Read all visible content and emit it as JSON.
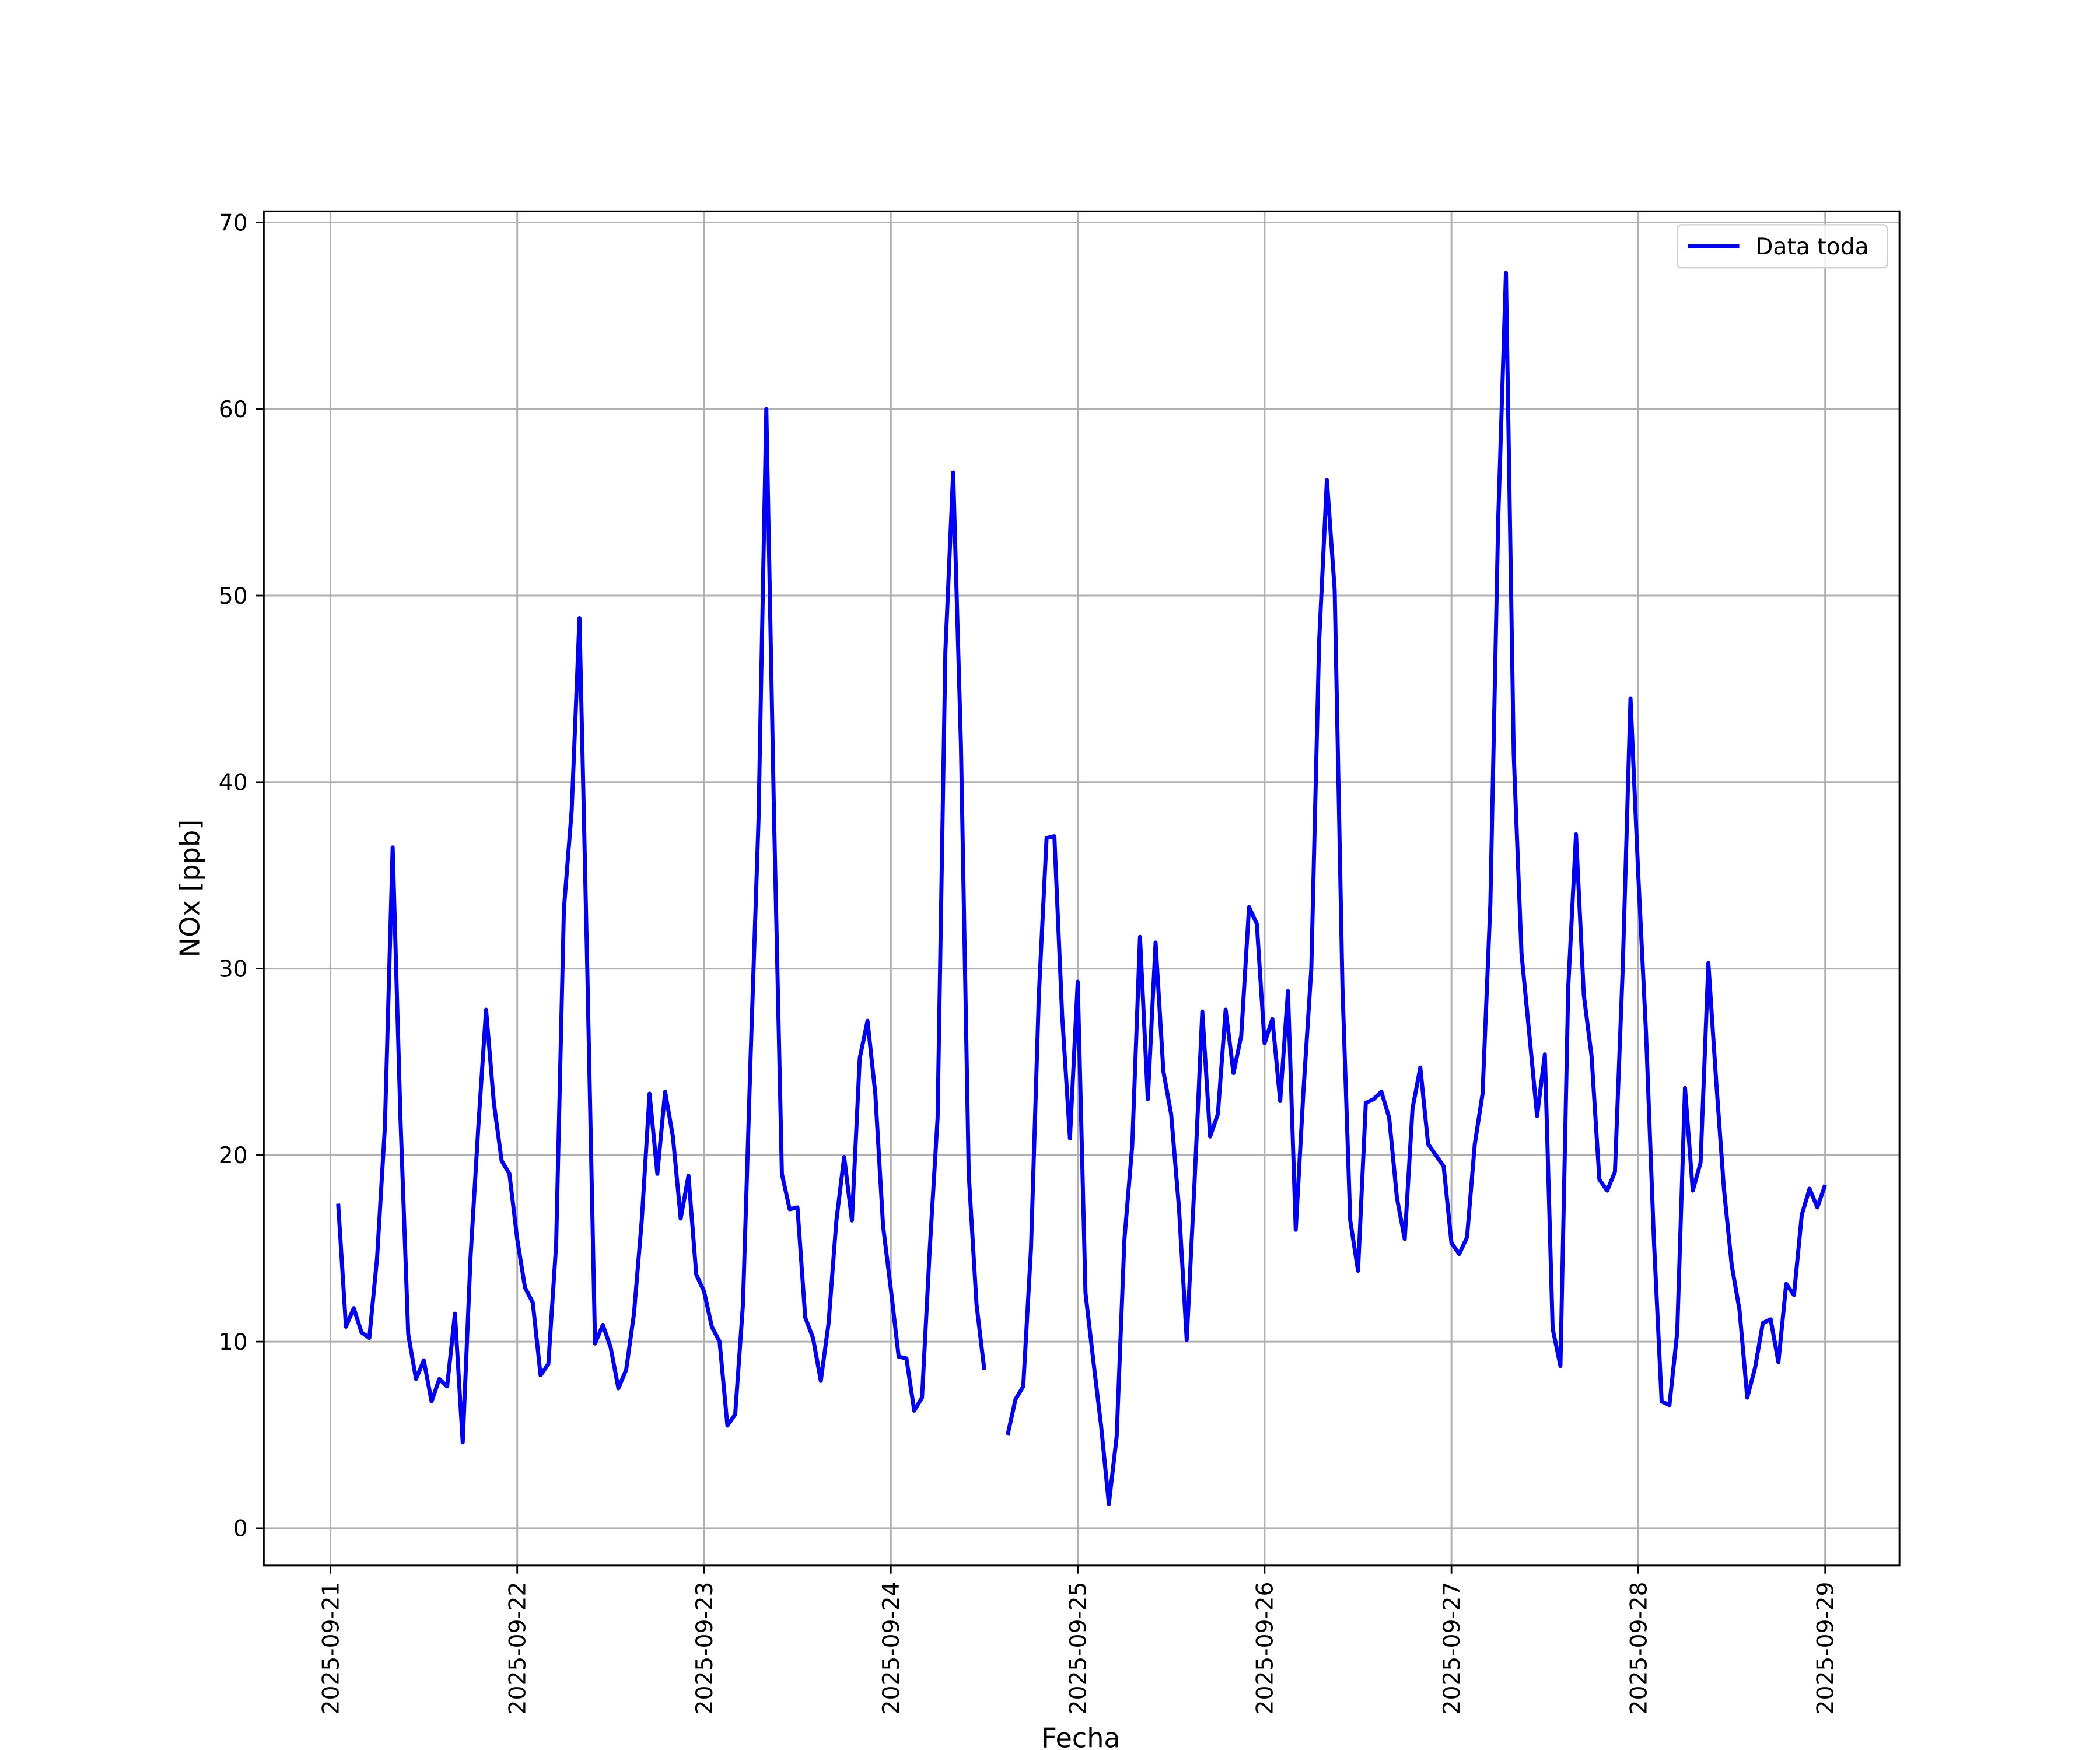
{
  "chart_data": {
    "type": "line",
    "xlabel": "Fecha",
    "ylabel": "NOx [ppb]",
    "xlim": [
      "2025-09-20 15:27",
      "2025-09-29 09:33"
    ],
    "xticks": [
      "2025-09-21",
      "2025-09-22",
      "2025-09-23",
      "2025-09-24",
      "2025-09-25",
      "2025-09-26",
      "2025-09-27",
      "2025-09-28",
      "2025-09-29"
    ],
    "ylim": [
      -2,
      70.6
    ],
    "yticks": [
      0,
      10,
      20,
      30,
      40,
      50,
      60,
      70
    ],
    "grid": true,
    "legend": "upper right",
    "x": [
      "2025-09-21 01:00",
      "2025-09-21 02:00",
      "2025-09-21 03:00",
      "2025-09-21 04:00",
      "2025-09-21 05:00",
      "2025-09-21 06:00",
      "2025-09-21 07:00",
      "2025-09-21 08:00",
      "2025-09-21 09:00",
      "2025-09-21 10:00",
      "2025-09-21 11:00",
      "2025-09-21 12:00",
      "2025-09-21 13:00",
      "2025-09-21 14:00",
      "2025-09-21 15:00",
      "2025-09-21 16:00",
      "2025-09-21 17:00",
      "2025-09-21 18:00",
      "2025-09-21 19:00",
      "2025-09-21 20:00",
      "2025-09-21 21:00",
      "2025-09-21 22:00",
      "2025-09-21 23:00",
      "2025-09-22 00:00",
      "2025-09-22 01:00",
      "2025-09-22 02:00",
      "2025-09-22 03:00",
      "2025-09-22 04:00",
      "2025-09-22 05:00",
      "2025-09-22 06:00",
      "2025-09-22 07:00",
      "2025-09-22 08:00",
      "2025-09-22 09:00",
      "2025-09-22 10:00",
      "2025-09-22 11:00",
      "2025-09-22 12:00",
      "2025-09-22 13:00",
      "2025-09-22 14:00",
      "2025-09-22 15:00",
      "2025-09-22 16:00",
      "2025-09-22 17:00",
      "2025-09-22 18:00",
      "2025-09-22 19:00",
      "2025-09-22 20:00",
      "2025-09-22 21:00",
      "2025-09-22 22:00",
      "2025-09-22 23:00",
      "2025-09-23 00:00",
      "2025-09-23 01:00",
      "2025-09-23 02:00",
      "2025-09-23 03:00",
      "2025-09-23 04:00",
      "2025-09-23 05:00",
      "2025-09-23 06:00",
      "2025-09-23 07:00",
      "2025-09-23 08:00",
      "2025-09-23 09:00",
      "2025-09-23 10:00",
      "2025-09-23 11:00",
      "2025-09-23 12:00",
      "2025-09-23 13:00",
      "2025-09-23 14:00",
      "2025-09-23 15:00",
      "2025-09-23 16:00",
      "2025-09-23 17:00",
      "2025-09-23 18:00",
      "2025-09-23 19:00",
      "2025-09-23 20:00",
      "2025-09-23 21:00",
      "2025-09-23 22:00",
      "2025-09-23 23:00",
      "2025-09-24 00:00",
      "2025-09-24 01:00",
      "2025-09-24 02:00",
      "2025-09-24 03:00",
      "2025-09-24 04:00",
      "2025-09-24 05:00",
      "2025-09-24 06:00",
      "2025-09-24 07:00",
      "2025-09-24 08:00",
      "2025-09-24 09:00",
      "2025-09-24 10:00",
      "2025-09-24 11:00",
      "2025-09-24 12:00",
      "2025-09-24 13:00",
      "2025-09-24 14:00",
      "2025-09-24 15:00",
      "2025-09-24 16:00",
      "2025-09-24 17:00",
      "2025-09-24 18:00",
      "2025-09-24 19:00",
      "2025-09-24 20:00",
      "2025-09-24 21:00",
      "2025-09-24 22:00",
      "2025-09-24 23:00",
      "2025-09-25 00:00",
      "2025-09-25 01:00",
      "2025-09-25 02:00",
      "2025-09-25 03:00",
      "2025-09-25 04:00",
      "2025-09-25 05:00",
      "2025-09-25 06:00",
      "2025-09-25 07:00",
      "2025-09-25 08:00",
      "2025-09-25 09:00",
      "2025-09-25 10:00",
      "2025-09-25 11:00",
      "2025-09-25 12:00",
      "2025-09-25 13:00",
      "2025-09-25 14:00",
      "2025-09-25 15:00",
      "2025-09-25 16:00",
      "2025-09-25 17:00",
      "2025-09-25 18:00",
      "2025-09-25 19:00",
      "2025-09-25 20:00",
      "2025-09-25 21:00",
      "2025-09-25 22:00",
      "2025-09-25 23:00",
      "2025-09-26 00:00",
      "2025-09-26 01:00",
      "2025-09-26 02:00",
      "2025-09-26 03:00",
      "2025-09-26 04:00",
      "2025-09-26 05:00",
      "2025-09-26 06:00",
      "2025-09-26 07:00",
      "2025-09-26 08:00",
      "2025-09-26 09:00",
      "2025-09-26 10:00",
      "2025-09-26 11:00",
      "2025-09-26 12:00",
      "2025-09-26 13:00",
      "2025-09-26 14:00",
      "2025-09-26 15:00",
      "2025-09-26 16:00",
      "2025-09-26 17:00",
      "2025-09-26 18:00",
      "2025-09-26 19:00",
      "2025-09-26 20:00",
      "2025-09-26 21:00",
      "2025-09-26 22:00",
      "2025-09-26 23:00",
      "2025-09-27 00:00",
      "2025-09-27 01:00",
      "2025-09-27 02:00",
      "2025-09-27 03:00",
      "2025-09-27 04:00",
      "2025-09-27 05:00",
      "2025-09-27 06:00",
      "2025-09-27 07:00",
      "2025-09-27 08:00",
      "2025-09-27 09:00",
      "2025-09-27 10:00",
      "2025-09-27 11:00",
      "2025-09-27 12:00",
      "2025-09-27 13:00",
      "2025-09-27 14:00",
      "2025-09-27 15:00",
      "2025-09-27 16:00",
      "2025-09-27 17:00",
      "2025-09-27 18:00",
      "2025-09-27 19:00",
      "2025-09-27 20:00",
      "2025-09-27 21:00",
      "2025-09-27 22:00",
      "2025-09-27 23:00",
      "2025-09-28 00:00",
      "2025-09-28 01:00",
      "2025-09-28 02:00",
      "2025-09-28 03:00",
      "2025-09-28 04:00",
      "2025-09-28 05:00",
      "2025-09-28 06:00",
      "2025-09-28 07:00",
      "2025-09-28 08:00",
      "2025-09-28 09:00",
      "2025-09-28 10:00",
      "2025-09-28 11:00",
      "2025-09-28 12:00",
      "2025-09-28 13:00",
      "2025-09-28 14:00",
      "2025-09-28 15:00",
      "2025-09-28 16:00",
      "2025-09-28 17:00",
      "2025-09-28 18:00",
      "2025-09-28 19:00",
      "2025-09-28 20:00",
      "2025-09-28 21:00",
      "2025-09-28 22:00",
      "2025-09-28 23:00",
      "2025-09-29 00:00"
    ],
    "series": [
      {
        "name": "Data toda",
        "color": "#0000ff",
        "values": [
          17.4,
          10.8,
          11.8,
          10.5,
          10.2,
          14.5,
          21.5,
          36.5,
          22,
          10.4,
          8,
          9,
          6.8,
          8,
          7.6,
          11.5,
          4.6,
          14.5,
          21.5,
          27.8,
          22.8,
          19.7,
          19,
          15.5,
          12.9,
          12.1,
          8.2,
          8.8,
          15.2,
          33.2,
          38.5,
          48.8,
          30,
          9.9,
          10.9,
          9.7,
          7.5,
          8.5,
          11.5,
          16.5,
          23.3,
          19,
          23.4,
          21,
          16.6,
          18.9,
          13.6,
          12.7,
          10.8,
          10,
          5.5,
          6.1,
          12,
          25.5,
          38,
          60,
          38,
          19,
          17.1,
          17.2,
          11.3,
          10.2,
          7.9,
          11,
          16.5,
          19.9,
          16.5,
          25.2,
          27.2,
          23.3,
          16.2,
          12.8,
          9.2,
          9.1,
          6.3,
          7,
          15,
          22,
          47,
          56.6,
          42,
          19,
          12,
          8.5,
          null,
          null,
          5,
          6.9,
          7.6,
          15,
          28.5,
          37,
          37.1,
          27.5,
          20.9,
          29.3,
          12.6,
          9,
          5.5,
          1.3,
          4.9,
          15.5,
          20.5,
          31.7,
          23,
          31.4,
          24.5,
          22.2,
          17.2,
          10.1,
          18.5,
          27.7,
          21,
          22.2,
          27.8,
          24.4,
          26.4,
          33.3,
          32.4,
          26,
          27.3,
          22.9,
          28.8,
          16,
          23.5,
          30,
          47.5,
          56.2,
          50.3,
          29,
          16.5,
          13.8,
          22.8,
          23,
          23.4,
          22,
          17.7,
          15.5,
          22.5,
          24.7,
          20.6,
          20,
          19.4,
          15.3,
          14.7,
          15.6,
          20.6,
          23.3,
          33.5,
          54,
          67.3,
          41.5,
          30.8,
          26.5,
          22.1,
          25.4,
          10.7,
          8.7,
          29,
          37.2,
          28.6,
          25.3,
          18.7,
          18.1,
          19.1,
          30,
          44.5,
          35,
          26.5,
          15.5,
          6.8,
          6.6,
          10.5,
          23.6,
          18.1,
          19.6,
          30.3,
          24,
          18.2,
          14.1,
          11.7,
          7,
          8.6,
          11,
          11.2,
          8.9,
          13.1,
          12.5,
          16.8,
          18.2,
          17.2,
          18.4
        ]
      }
    ]
  }
}
